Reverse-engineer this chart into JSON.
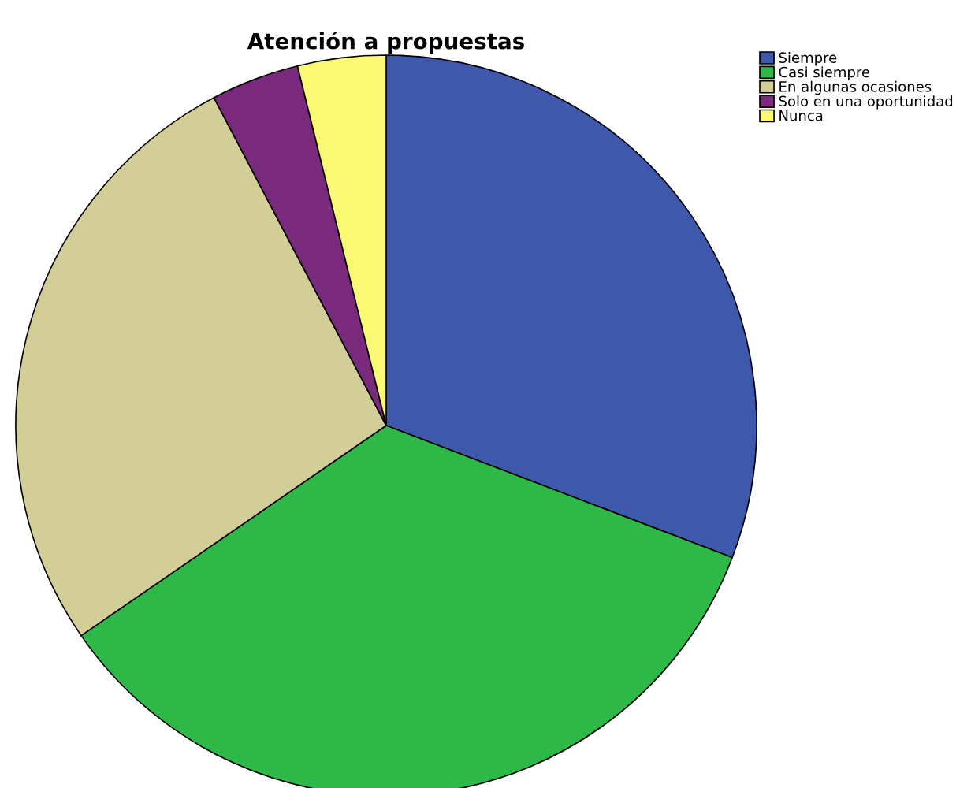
{
  "chart_data": {
    "type": "pie",
    "title": "Atención a propuestas",
    "categories": [
      "Siempre",
      "Casi siempre",
      "En algunas ocasiones",
      "Solo en una oportunidad",
      "Nunca"
    ],
    "values": [
      30.8,
      34.6,
      26.9,
      3.85,
      3.85
    ],
    "colors": [
      "#3e58ac",
      "#2eb848",
      "#d3ce97",
      "#7a2a7c",
      "#fbf873"
    ],
    "legend": "top right"
  }
}
